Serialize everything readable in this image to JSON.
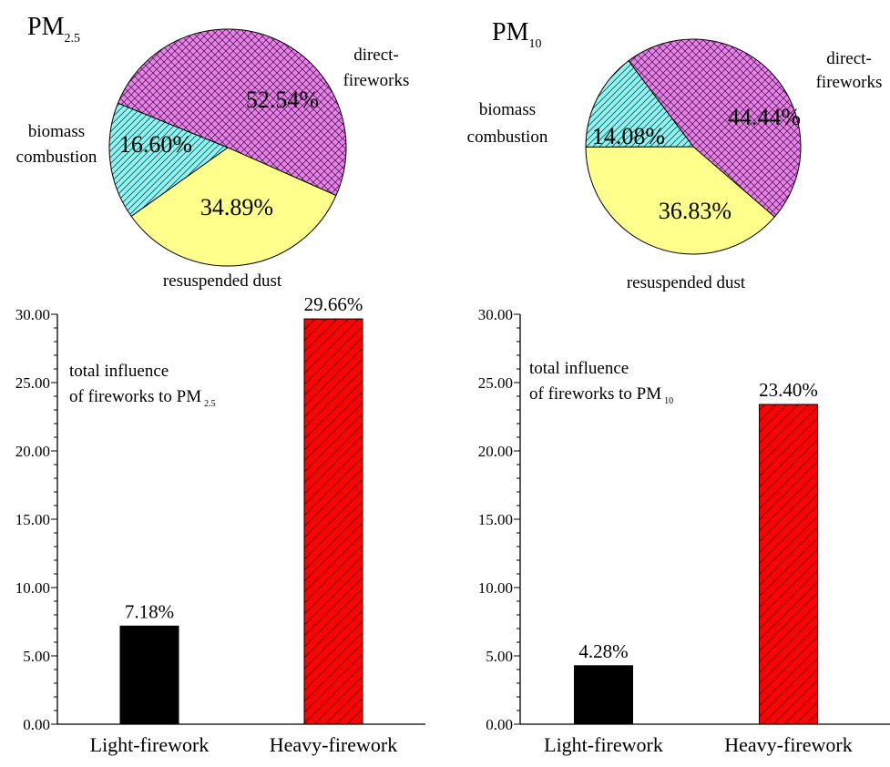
{
  "chart_data": [
    {
      "type": "pie",
      "title": "PM",
      "title_sub": "2.5",
      "slices": [
        {
          "label": "direct-fireworks",
          "label_lines": [
            "direct-",
            "fireworks"
          ],
          "value": 52.54,
          "value_label": "52.54%",
          "color": "#f07cf2",
          "pattern": "crosshatch"
        },
        {
          "label": "resuspended dust",
          "label_lines": [
            "resuspended dust"
          ],
          "value": 34.89,
          "value_label": "34.89%",
          "color": "#ffff8c",
          "pattern": "none"
        },
        {
          "label": "biomass combustion",
          "label_lines": [
            "biomass",
            "combustion"
          ],
          "value": 16.6,
          "value_label": "16.60%",
          "color": "#8af5f2",
          "pattern": "diagonal"
        }
      ]
    },
    {
      "type": "pie",
      "title": "PM",
      "title_sub": "10",
      "slices": [
        {
          "label": "direct-fireworks",
          "label_lines": [
            "direct-",
            "fireworks"
          ],
          "value": 44.44,
          "value_label": "44.44%",
          "color": "#f07cf2",
          "pattern": "crosshatch"
        },
        {
          "label": "resuspended dust",
          "label_lines": [
            "resuspended dust"
          ],
          "value": 36.83,
          "value_label": "36.83%",
          "color": "#ffff8c",
          "pattern": "none"
        },
        {
          "label": "biomass combustion",
          "label_lines": [
            "biomass",
            "combustion"
          ],
          "value": 14.08,
          "value_label": "14.08%",
          "color": "#8af5f2",
          "pattern": "diagonal"
        }
      ]
    },
    {
      "type": "bar",
      "annotation_lines": [
        "total influence",
        "of fireworks to PM"
      ],
      "annotation_sub": "2.5",
      "categories": [
        "Light-firework",
        "Heavy-firework"
      ],
      "values": [
        7.18,
        29.66
      ],
      "value_labels": [
        "7.18%",
        "29.66%"
      ],
      "colors": [
        "#000000",
        "#ff0000"
      ],
      "patterns": [
        "none",
        "diagonal"
      ],
      "ylim": [
        0,
        30
      ],
      "yticks": [
        "0.00",
        "5.00",
        "10.00",
        "15.00",
        "20.00",
        "25.00",
        "30.00"
      ]
    },
    {
      "type": "bar",
      "annotation_lines": [
        "total influence",
        "of fireworks to PM"
      ],
      "annotation_sub": "10",
      "categories": [
        "Light-firework",
        "Heavy-firework"
      ],
      "values": [
        4.28,
        23.4
      ],
      "value_labels": [
        "4.28%",
        "23.40%"
      ],
      "colors": [
        "#000000",
        "#ff0000"
      ],
      "patterns": [
        "none",
        "diagonal"
      ],
      "ylim": [
        0,
        30
      ],
      "yticks": [
        "0.00",
        "5.00",
        "10.00",
        "15.00",
        "20.00",
        "25.00",
        "30.00"
      ]
    }
  ]
}
